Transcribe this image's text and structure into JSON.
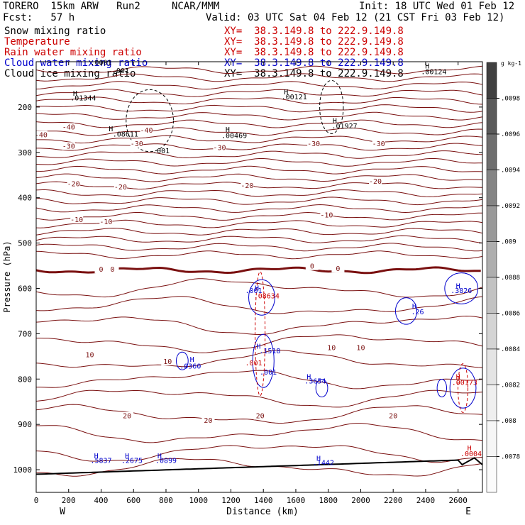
{
  "header": {
    "model": "TORERO  15km ARW   Run2",
    "org": "NCAR/MMM",
    "init": "Init: 18 UTC Wed 01 Feb 12",
    "fcst": "Fcst:   57 h",
    "valid": "Valid: 03 UTC Sat 04 Feb 12 (21 CST Fri 03 Feb 12)"
  },
  "legend": [
    {
      "name": "Snow mixing ratio",
      "xy": "XY=  38.3.149.8 to 222.9.149.8",
      "color": "#000000"
    },
    {
      "name": "Temperature",
      "xy": "XY=  38.3.149.8 to 222.9.149.8",
      "color": "#cc0000"
    },
    {
      "name": "Rain water mixing ratio",
      "xy": "XY=  38.3.149.8 to 222.9.149.8",
      "color": "#cc0000"
    },
    {
      "name": "Cloud water mixing ratio",
      "xy": "XY=  38.3.149.8 to 222.9.149.8",
      "color": "#0000cc"
    },
    {
      "name": "Cloud ice mixing ratio",
      "xy": "XY=  38.3.149.8 to 222.9.149.8",
      "color": "#000000"
    }
  ],
  "axes": {
    "xlabel": "Distance (km)",
    "ylabel": "Pressure (hPa)",
    "x_left": "W",
    "x_right": "E"
  },
  "colorbar": {
    "unit": "g kg-1",
    "ticks": [
      ".0098",
      ".0096",
      ".0094",
      ".0092",
      ".009",
      ".0088",
      ".0086",
      ".0084",
      ".0082",
      ".008",
      ".0078"
    ]
  },
  "chart_data": {
    "type": "contour",
    "xlim": [
      0,
      2750
    ],
    "ylim": [
      1050,
      100
    ],
    "xticks": [
      0,
      200,
      400,
      600,
      800,
      1000,
      1200,
      1400,
      1600,
      1800,
      2000,
      2200,
      2400,
      2600
    ],
    "yticks": [
      200,
      300,
      400,
      500,
      600,
      700,
      800,
      900,
      1000
    ],
    "temperature_contour_labels": [
      {
        "x": 30,
        "p": 265,
        "text": "-40"
      },
      {
        "x": 200,
        "p": 248,
        "text": "-40"
      },
      {
        "x": 680,
        "p": 255,
        "text": "-40"
      },
      {
        "x": 200,
        "p": 290,
        "text": "-30"
      },
      {
        "x": 620,
        "p": 285,
        "text": "-30"
      },
      {
        "x": 1130,
        "p": 293,
        "text": "-30"
      },
      {
        "x": 1710,
        "p": 285,
        "text": "-30"
      },
      {
        "x": 2110,
        "p": 285,
        "text": "-30"
      },
      {
        "x": 230,
        "p": 373,
        "text": "-20"
      },
      {
        "x": 520,
        "p": 380,
        "text": "-20"
      },
      {
        "x": 1300,
        "p": 377,
        "text": "-20"
      },
      {
        "x": 2090,
        "p": 368,
        "text": "-20"
      },
      {
        "x": 250,
        "p": 452,
        "text": "-10"
      },
      {
        "x": 430,
        "p": 457,
        "text": "-10"
      },
      {
        "x": 1790,
        "p": 442,
        "text": "-10"
      },
      {
        "x": 400,
        "p": 562,
        "text": "0"
      },
      {
        "x": 470,
        "p": 562,
        "text": "0"
      },
      {
        "x": 1700,
        "p": 555,
        "text": "0"
      },
      {
        "x": 1860,
        "p": 560,
        "text": "0"
      },
      {
        "x": 330,
        "p": 750,
        "text": "10"
      },
      {
        "x": 810,
        "p": 765,
        "text": "10"
      },
      {
        "x": 1820,
        "p": 735,
        "text": "10"
      },
      {
        "x": 2000,
        "p": 735,
        "text": "10"
      },
      {
        "x": 560,
        "p": 885,
        "text": "20"
      },
      {
        "x": 1060,
        "p": 895,
        "text": "20"
      },
      {
        "x": 1380,
        "p": 885,
        "text": "20"
      },
      {
        "x": 2200,
        "p": 885,
        "text": "20"
      }
    ],
    "extrema_labels": [
      {
        "x": 290,
        "p": 185,
        "text": ".01344",
        "color": "#000000"
      },
      {
        "x": 400,
        "p": 107,
        "text": ".0001",
        "color": "#000000"
      },
      {
        "x": 520,
        "p": 125,
        "text": ".001",
        "color": "#000000"
      },
      {
        "x": 550,
        "p": 265,
        "text": ".08611",
        "color": "#000000"
      },
      {
        "x": 770,
        "p": 302,
        "text": ".001",
        "color": "#000000"
      },
      {
        "x": 1220,
        "p": 268,
        "text": ".00469",
        "color": "#000000"
      },
      {
        "x": 1590,
        "p": 183,
        "text": ".00121",
        "color": "#000000"
      },
      {
        "x": 1900,
        "p": 247,
        "text": ".01927",
        "color": "#000000"
      },
      {
        "x": 2450,
        "p": 127,
        "text": ".00124",
        "color": "#000000"
      },
      {
        "x": 1420,
        "p": 622,
        "text": ".08634",
        "color": "#cc0000"
      },
      {
        "x": 1340,
        "p": 610,
        "text": ".001",
        "color": "#0000cc"
      },
      {
        "x": 1440,
        "p": 743,
        "text": ".1518",
        "color": "#0000cc"
      },
      {
        "x": 1340,
        "p": 770,
        "text": ".001",
        "color": "#cc0000"
      },
      {
        "x": 1430,
        "p": 790,
        "text": ".001",
        "color": "#0000cc"
      },
      {
        "x": 950,
        "p": 777,
        "text": ".0360",
        "color": "#0000cc"
      },
      {
        "x": 1720,
        "p": 810,
        "text": ".3654",
        "color": "#0000cc"
      },
      {
        "x": 2350,
        "p": 657,
        "text": ".26",
        "color": "#0000cc"
      },
      {
        "x": 2620,
        "p": 610,
        "text": ".3826",
        "color": "#0000cc"
      },
      {
        "x": 2640,
        "p": 813,
        "text": ".00173",
        "color": "#cc0000"
      },
      {
        "x": 2680,
        "p": 970,
        "text": ".0004",
        "color": "#cc0000"
      },
      {
        "x": 400,
        "p": 985,
        "text": ".5837",
        "color": "#0000cc"
      },
      {
        "x": 590,
        "p": 985,
        "text": ".2675",
        "color": "#0000cc"
      },
      {
        "x": 800,
        "p": 985,
        "text": ".0899",
        "color": "#0000cc"
      },
      {
        "x": 1770,
        "p": 990,
        "text": ".1442",
        "color": "#0000cc"
      }
    ],
    "h_markers": [
      {
        "x": 240,
        "p": 175,
        "color": "#000000"
      },
      {
        "x": 460,
        "p": 253,
        "color": "#000000"
      },
      {
        "x": 1180,
        "p": 255,
        "color": "#000000"
      },
      {
        "x": 1540,
        "p": 172,
        "color": "#000000"
      },
      {
        "x": 1840,
        "p": 235,
        "color": "#000000"
      },
      {
        "x": 2410,
        "p": 115,
        "color": "#000000"
      },
      {
        "x": 1360,
        "p": 605,
        "color": "#0000cc"
      },
      {
        "x": 1370,
        "p": 733,
        "color": "#0000cc"
      },
      {
        "x": 960,
        "p": 762,
        "color": "#0000cc"
      },
      {
        "x": 1680,
        "p": 800,
        "color": "#0000cc"
      },
      {
        "x": 2330,
        "p": 645,
        "color": "#0000cc"
      },
      {
        "x": 2600,
        "p": 600,
        "color": "#0000cc"
      },
      {
        "x": 2600,
        "p": 800,
        "color": "#cc0000"
      },
      {
        "x": 2670,
        "p": 958,
        "color": "#cc0000"
      },
      {
        "x": 370,
        "p": 975,
        "color": "#0000cc"
      },
      {
        "x": 560,
        "p": 975,
        "color": "#0000cc"
      },
      {
        "x": 760,
        "p": 975,
        "color": "#0000cc"
      },
      {
        "x": 1740,
        "p": 980,
        "color": "#0000cc"
      }
    ]
  }
}
